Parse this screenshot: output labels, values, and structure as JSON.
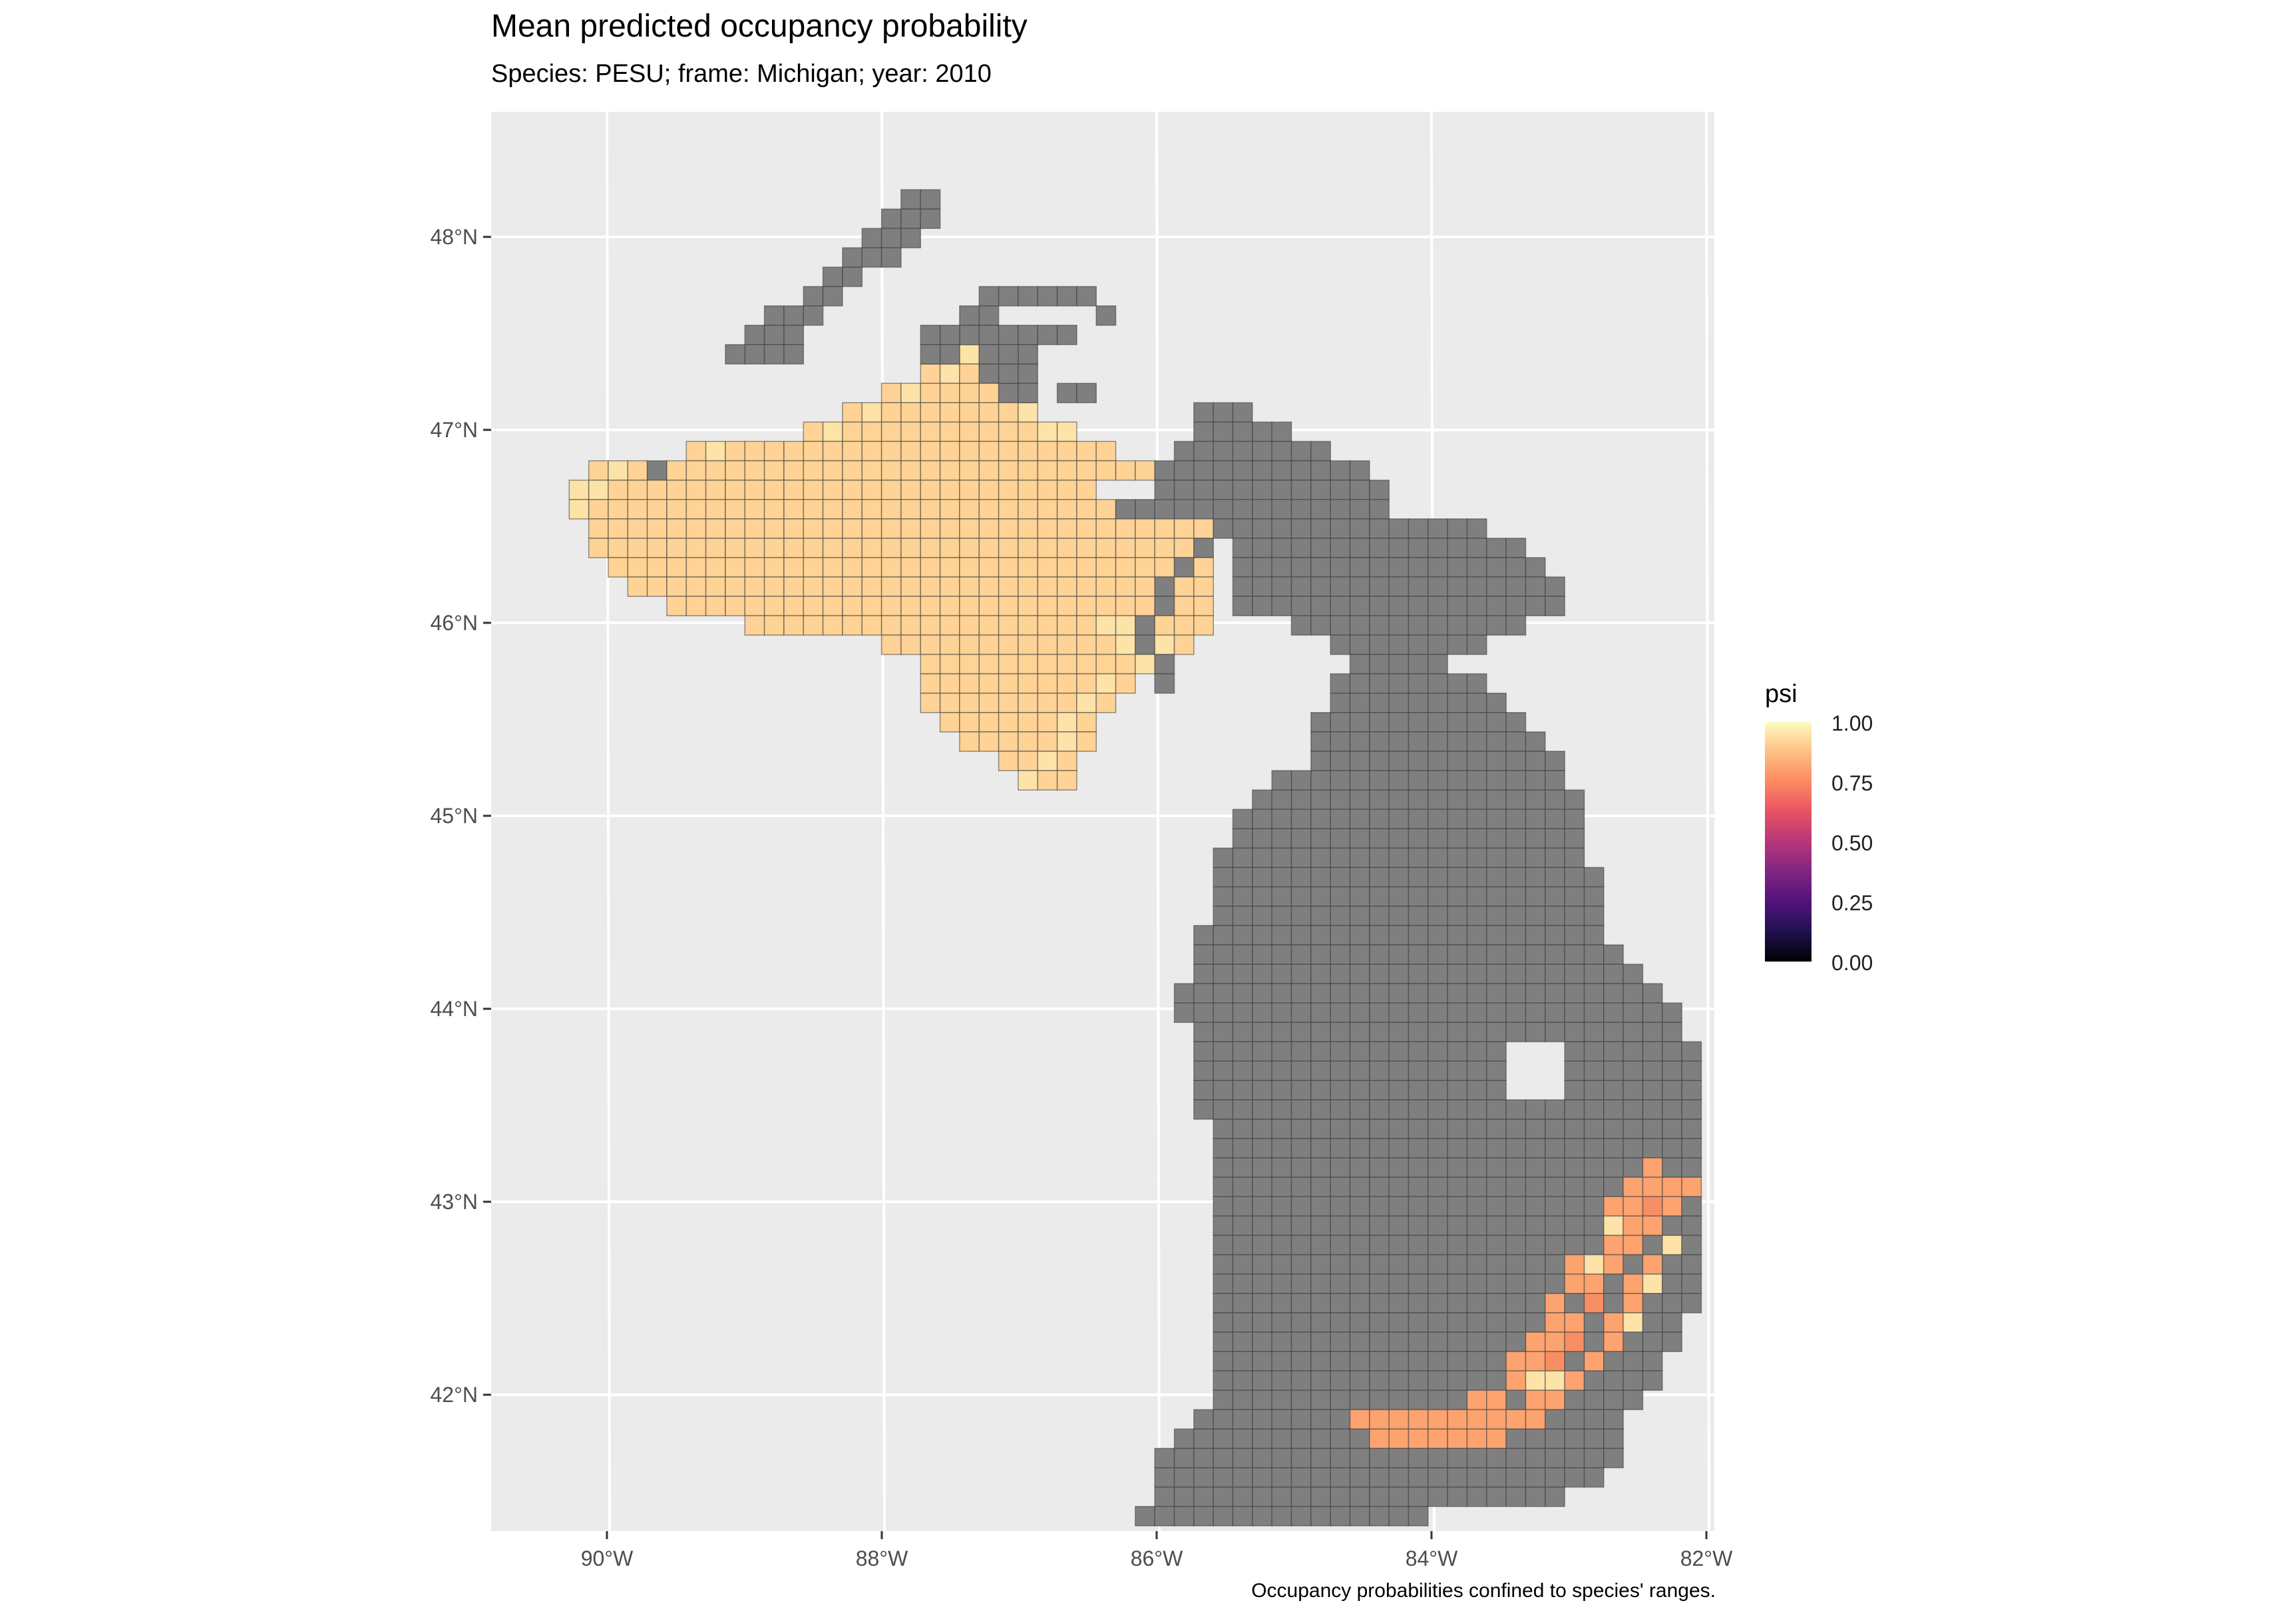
{
  "map": {
    "title": "Mean predicted occupancy probability",
    "subtitle": "Species: PESU; frame: Michigan; year: 2010",
    "caption": "Occupancy probabilities confined to species' ranges.",
    "legend": {
      "title": "psi",
      "labels": [
        "1.00",
        "0.75",
        "0.50",
        "0.25",
        "0.00"
      ],
      "colormap": "magma",
      "range": [
        0,
        1
      ]
    },
    "lon_ticks": [
      "90°W",
      "88°W",
      "86°W",
      "84°W",
      "82°W"
    ],
    "lat_ticks": [
      "48°N",
      "47°N",
      "46°N",
      "45°N",
      "44°N",
      "43°N",
      "42°N"
    ],
    "colors": {
      "panel_background": "#ebebeb",
      "gridline": "#ffffff",
      "no_range": "#7f7f7f",
      "psi_high": "#fed395",
      "psi_mid_high": "#fca36f"
    },
    "regions": {
      "isle_royale": "out-of-range",
      "upper_peninsula_west": "psi ≈ 0.90",
      "upper_peninsula_east": "out-of-range",
      "keweenaw_tip": "out-of-range",
      "lower_peninsula": "out-of-range",
      "southeast_lower_peninsula_edge": "psi ≈ 0.70–0.95"
    }
  }
}
